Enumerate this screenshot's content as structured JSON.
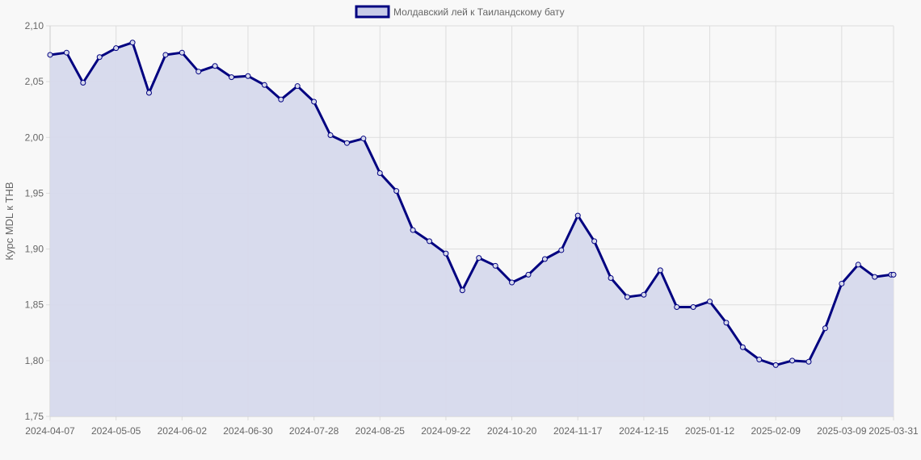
{
  "chart_data": {
    "type": "area",
    "ylabel": "Курс MDL к THB",
    "ylim": [
      1.75,
      2.1
    ],
    "y_ticks": [
      "1,75",
      "1,80",
      "1,85",
      "1,90",
      "1,95",
      "2,00",
      "2,05",
      "2,10"
    ],
    "x_tick_labels": [
      "2024-04-07",
      "2024-05-05",
      "2024-06-02",
      "2024-06-30",
      "2024-07-28",
      "2024-08-25",
      "2024-09-22",
      "2024-10-20",
      "2024-11-17",
      "2024-12-15",
      "2025-01-12",
      "2025-02-09",
      "2025-03-09",
      "2025-03-31"
    ],
    "grid": true,
    "legend": {
      "position": "top",
      "entries": [
        "Молдавский лей к Таиландскому бату"
      ]
    },
    "colors": {
      "line": "#000080",
      "fill": "#d6d9ec",
      "grid": "#dddddd",
      "legend_fill": "#c8cbe8"
    },
    "series": [
      {
        "name": "Молдавский лей к Таиландскому бату",
        "x": [
          "2024-04-07",
          "2024-04-14",
          "2024-04-21",
          "2024-04-28",
          "2024-05-05",
          "2024-05-12",
          "2024-05-19",
          "2024-05-26",
          "2024-06-02",
          "2024-06-09",
          "2024-06-16",
          "2024-06-23",
          "2024-06-30",
          "2024-07-07",
          "2024-07-14",
          "2024-07-21",
          "2024-07-28",
          "2024-08-04",
          "2024-08-11",
          "2024-08-18",
          "2024-08-25",
          "2024-09-01",
          "2024-09-08",
          "2024-09-15",
          "2024-09-22",
          "2024-09-29",
          "2024-10-06",
          "2024-10-13",
          "2024-10-20",
          "2024-10-27",
          "2024-11-03",
          "2024-11-10",
          "2024-11-17",
          "2024-11-24",
          "2024-12-01",
          "2024-12-08",
          "2024-12-15",
          "2024-12-22",
          "2024-12-29",
          "2025-01-05",
          "2025-01-12",
          "2025-01-19",
          "2025-01-26",
          "2025-02-02",
          "2025-02-09",
          "2025-02-16",
          "2025-02-23",
          "2025-03-02",
          "2025-03-09",
          "2025-03-16",
          "2025-03-23",
          "2025-03-30",
          "2025-03-31"
        ],
        "values": [
          2.074,
          2.076,
          2.049,
          2.072,
          2.08,
          2.085,
          2.04,
          2.074,
          2.076,
          2.059,
          2.064,
          2.054,
          2.055,
          2.047,
          2.034,
          2.046,
          2.032,
          2.002,
          1.995,
          1.999,
          1.968,
          1.952,
          1.917,
          1.907,
          1.896,
          1.863,
          1.892,
          1.885,
          1.87,
          1.877,
          1.891,
          1.899,
          1.93,
          1.907,
          1.874,
          1.857,
          1.859,
          1.881,
          1.848,
          1.848,
          1.853,
          1.834,
          1.812,
          1.801,
          1.796,
          1.8,
          1.799,
          1.829,
          1.869,
          1.886,
          1.875,
          1.877,
          1.877
        ]
      }
    ]
  }
}
